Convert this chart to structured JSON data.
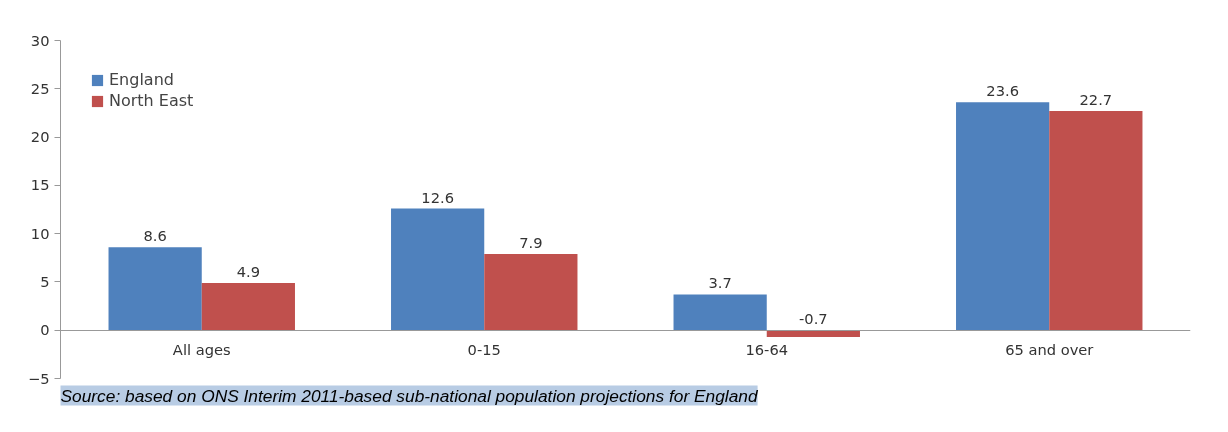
{
  "chart_data": {
    "type": "bar",
    "categories": [
      "All ages",
      "0-15",
      "16-64",
      "65 and over"
    ],
    "series": [
      {
        "name": "England",
        "color": "#4f81bd",
        "values": [
          8.6,
          12.6,
          3.7,
          23.6
        ]
      },
      {
        "name": "North East",
        "color": "#c0504d",
        "values": [
          4.9,
          7.9,
          -0.7,
          22.7
        ]
      }
    ],
    "ylim": [
      -5,
      30
    ],
    "yticks": [
      -5,
      0,
      5,
      10,
      15,
      20,
      25,
      30
    ],
    "legend": "top left",
    "data_labels": true,
    "annotations": [
      "Source: based on ONS Interim 2011-based sub-national population projections for England"
    ]
  }
}
